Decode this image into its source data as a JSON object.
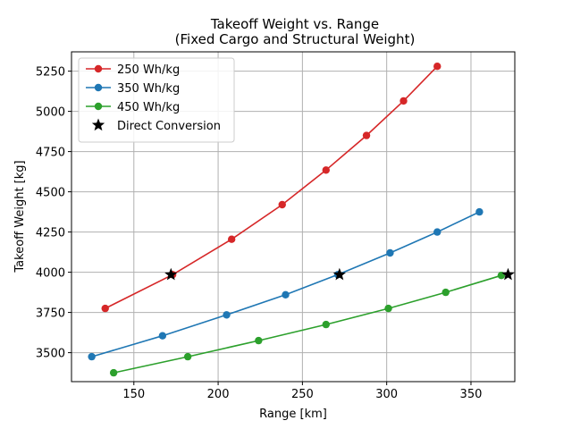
{
  "chart_data": {
    "type": "line",
    "title": "Takeoff Weight vs. Range",
    "subtitle": "(Fixed Cargo and Structural Weight)",
    "xlabel": "Range [km]",
    "ylabel": "Takeoff Weight [kg]",
    "xlim": [
      113,
      376
    ],
    "ylim": [
      3320,
      5370
    ],
    "xticks": [
      150,
      200,
      250,
      300,
      350
    ],
    "yticks": [
      3500,
      3750,
      4000,
      4250,
      4500,
      4750,
      5000,
      5250
    ],
    "grid": true,
    "legend_position": "top-left",
    "series": [
      {
        "name": "250 Wh/kg",
        "color": "#d62728",
        "marker": "circle",
        "x": [
          133,
          173,
          208,
          238,
          264,
          288,
          310,
          330
        ],
        "y": [
          3775,
          3985,
          4205,
          4420,
          4635,
          4850,
          5065,
          5280
        ]
      },
      {
        "name": "350 Wh/kg",
        "color": "#1f77b4",
        "marker": "circle",
        "x": [
          125,
          167,
          205,
          240,
          271,
          302,
          330,
          355
        ],
        "y": [
          3475,
          3605,
          3735,
          3860,
          3985,
          4120,
          4250,
          4375
        ]
      },
      {
        "name": "450 Wh/kg",
        "color": "#2ca02c",
        "marker": "circle",
        "x": [
          138,
          182,
          224,
          264,
          301,
          335,
          368
        ],
        "y": [
          3375,
          3475,
          3575,
          3675,
          3775,
          3875,
          3980
        ]
      },
      {
        "name": "Direct Conversion",
        "color": "#000000",
        "marker": "star",
        "x": [
          172,
          272,
          372
        ],
        "y": [
          3985,
          3985,
          3985
        ]
      }
    ]
  }
}
